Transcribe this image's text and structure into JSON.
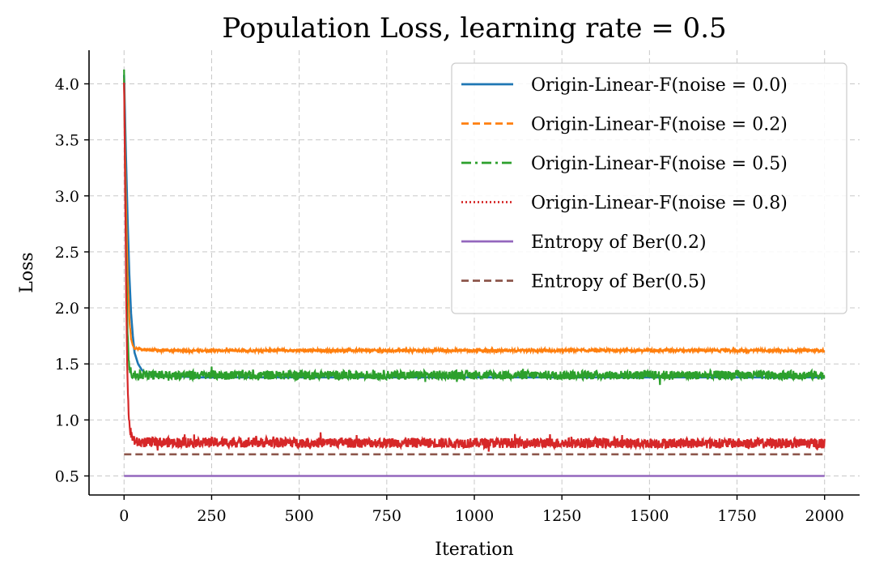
{
  "chart_data": {
    "type": "line",
    "title": "Population Loss, learning rate = 0.5",
    "xlabel": "Iteration",
    "ylabel": "Loss",
    "xlim": [
      -100,
      2100
    ],
    "ylim": [
      0.33,
      4.3
    ],
    "xticks": [
      0,
      250,
      500,
      750,
      1000,
      1250,
      1500,
      1750,
      2000
    ],
    "xtick_labels": [
      "0",
      "250",
      "500",
      "750",
      "1000",
      "1250",
      "1500",
      "1750",
      "2000"
    ],
    "yticks": [
      0.5,
      1.0,
      1.5,
      2.0,
      2.5,
      3.0,
      3.5,
      4.0
    ],
    "ytick_labels": [
      "0.5",
      "1.0",
      "1.5",
      "2.0",
      "2.5",
      "3.0",
      "3.5",
      "4.0"
    ],
    "grid": true,
    "legend_position": "top-right",
    "series": [
      {
        "name": "Origin-Linear-F(noise = 0.0)",
        "color": "#1f77b4",
        "style": "solid",
        "x": [
          0,
          5,
          10,
          15,
          20,
          25,
          30,
          40,
          50,
          60,
          80,
          100,
          150,
          200,
          2000
        ],
        "y": [
          4.08,
          3.4,
          2.8,
          2.3,
          1.95,
          1.75,
          1.6,
          1.5,
          1.45,
          1.42,
          1.4,
          1.39,
          1.39,
          1.38,
          1.38
        ],
        "noise_amplitude": 0.0
      },
      {
        "name": "Origin-Linear-F(noise = 0.2)",
        "color": "#ff7f0e",
        "style": "dashed",
        "x": [
          0,
          5,
          10,
          15,
          20,
          25,
          30,
          50,
          100,
          2000
        ],
        "y": [
          4.05,
          3.0,
          2.3,
          1.9,
          1.72,
          1.66,
          1.64,
          1.63,
          1.62,
          1.62
        ],
        "noise_amplitude": 0.012
      },
      {
        "name": "Origin-Linear-F(noise = 0.5)",
        "color": "#2ca02c",
        "style": "dashdot",
        "x": [
          0,
          3,
          6,
          9,
          12,
          15,
          20,
          30,
          2000
        ],
        "y": [
          4.1,
          3.2,
          2.4,
          1.9,
          1.6,
          1.48,
          1.42,
          1.4,
          1.4
        ],
        "noise_amplitude": 0.04
      },
      {
        "name": "Origin-Linear-F(noise = 0.8)",
        "color": "#d62728",
        "style": "dotted",
        "x": [
          0,
          3,
          6,
          9,
          12,
          15,
          20,
          25,
          35,
          2000
        ],
        "y": [
          4.05,
          3.1,
          2.1,
          1.5,
          1.15,
          0.95,
          0.87,
          0.83,
          0.8,
          0.79
        ],
        "noise_amplitude": 0.045
      },
      {
        "name": "Entropy of Ber(0.2)",
        "color": "#9467bd",
        "style": "solid",
        "x": [
          0,
          2000
        ],
        "y": [
          0.5,
          0.5
        ],
        "noise_amplitude": 0.0
      },
      {
        "name": "Entropy of Ber(0.5)",
        "color": "#8c564b",
        "style": "dashed",
        "x": [
          0,
          2000
        ],
        "y": [
          0.693,
          0.693
        ],
        "noise_amplitude": 0.0
      }
    ]
  }
}
